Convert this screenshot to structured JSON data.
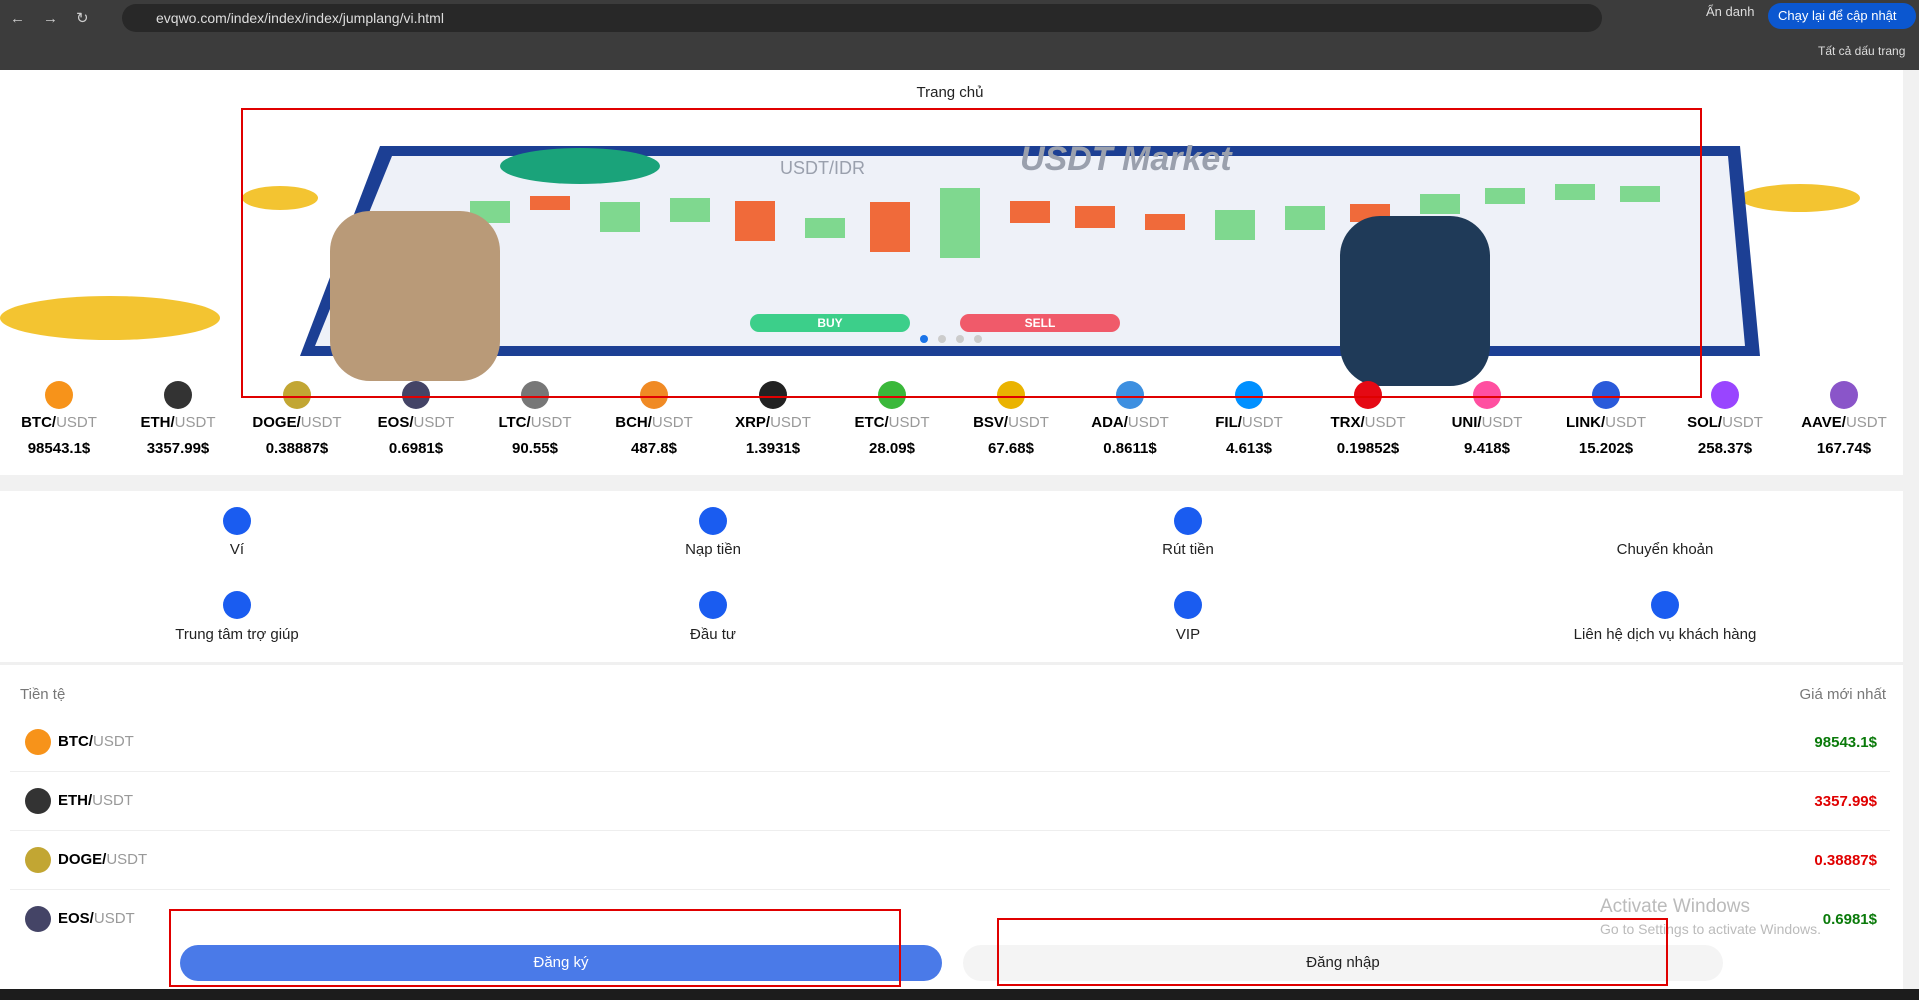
{
  "browser": {
    "url": "evqwo.com/index/index/index/jumplang/vi.html",
    "incognito": "Ẩn danh",
    "update": "Chạy lại để cập nhật",
    "bookmarks": "Tất cả dấu trang"
  },
  "header": {
    "title": "Trang chủ"
  },
  "banner": {
    "heading": "USDT Market",
    "subheading": "USDT/IDR",
    "buy": "BUY",
    "sell": "SELL"
  },
  "ticker": [
    {
      "base": "BTC/",
      "quote": "USDT",
      "price": "98543.1$",
      "color": "#f7931a"
    },
    {
      "base": "ETH/",
      "quote": "USDT",
      "price": "3357.99$",
      "color": "#333333"
    },
    {
      "base": "DOGE/",
      "quote": "USDT",
      "price": "0.38887$",
      "color": "#c2a633"
    },
    {
      "base": "EOS/",
      "quote": "USDT",
      "price": "0.6981$",
      "color": "#444466"
    },
    {
      "base": "LTC/",
      "quote": "USDT",
      "price": "90.55$",
      "color": "#777777"
    },
    {
      "base": "BCH/",
      "quote": "USDT",
      "price": "487.8$",
      "color": "#f08a24"
    },
    {
      "base": "XRP/",
      "quote": "USDT",
      "price": "1.3931$",
      "color": "#222222"
    },
    {
      "base": "ETC/",
      "quote": "USDT",
      "price": "28.09$",
      "color": "#3ab83a"
    },
    {
      "base": "BSV/",
      "quote": "USDT",
      "price": "67.68$",
      "color": "#eab300"
    },
    {
      "base": "ADA/",
      "quote": "USDT",
      "price": "0.8611$",
      "color": "#3d8fe0"
    },
    {
      "base": "FIL/",
      "quote": "USDT",
      "price": "4.613$",
      "color": "#0090ff"
    },
    {
      "base": "TRX/",
      "quote": "USDT",
      "price": "0.19852$",
      "color": "#e50914"
    },
    {
      "base": "UNI/",
      "quote": "USDT",
      "price": "9.418$",
      "color": "#ff4fa0"
    },
    {
      "base": "LINK/",
      "quote": "USDT",
      "price": "15.202$",
      "color": "#2a5ada"
    },
    {
      "base": "SOL/",
      "quote": "USDT",
      "price": "258.37$",
      "color": "#9945ff"
    },
    {
      "base": "AAVE/",
      "quote": "USDT",
      "price": "167.74$",
      "color": "#8a55c9"
    }
  ],
  "menu": [
    {
      "label": "Ví"
    },
    {
      "label": "Nạp tiền"
    },
    {
      "label": "Rút tiền"
    },
    {
      "label": "Chuyển khoản"
    },
    {
      "label": "Trung tâm trợ giúp"
    },
    {
      "label": "Đầu tư"
    },
    {
      "label": "VIP"
    },
    {
      "label": "Liên hệ dịch vụ khách hàng"
    }
  ],
  "market": {
    "col_currency": "Tiền tệ",
    "col_price": "Giá mới nhất",
    "rows": [
      {
        "base": "BTC/",
        "quote": "USDT",
        "price": "98543.1$",
        "price_color": "#0a7a0a",
        "icon_color": "#f7931a"
      },
      {
        "base": "ETH/",
        "quote": "USDT",
        "price": "3357.99$",
        "price_color": "#e00000",
        "icon_color": "#333333"
      },
      {
        "base": "DOGE/",
        "quote": "USDT",
        "price": "0.38887$",
        "price_color": "#e00000",
        "icon_color": "#c2a633"
      },
      {
        "base": "EOS/",
        "quote": "USDT",
        "price": "0.6981$",
        "price_color": "#0a7a0a",
        "icon_color": "#444466"
      }
    ]
  },
  "buttons": {
    "register": "Đăng ký",
    "login": "Đăng nhập"
  },
  "watermark": {
    "title": "Activate Windows",
    "subtitle": "Go to Settings to activate Windows."
  }
}
